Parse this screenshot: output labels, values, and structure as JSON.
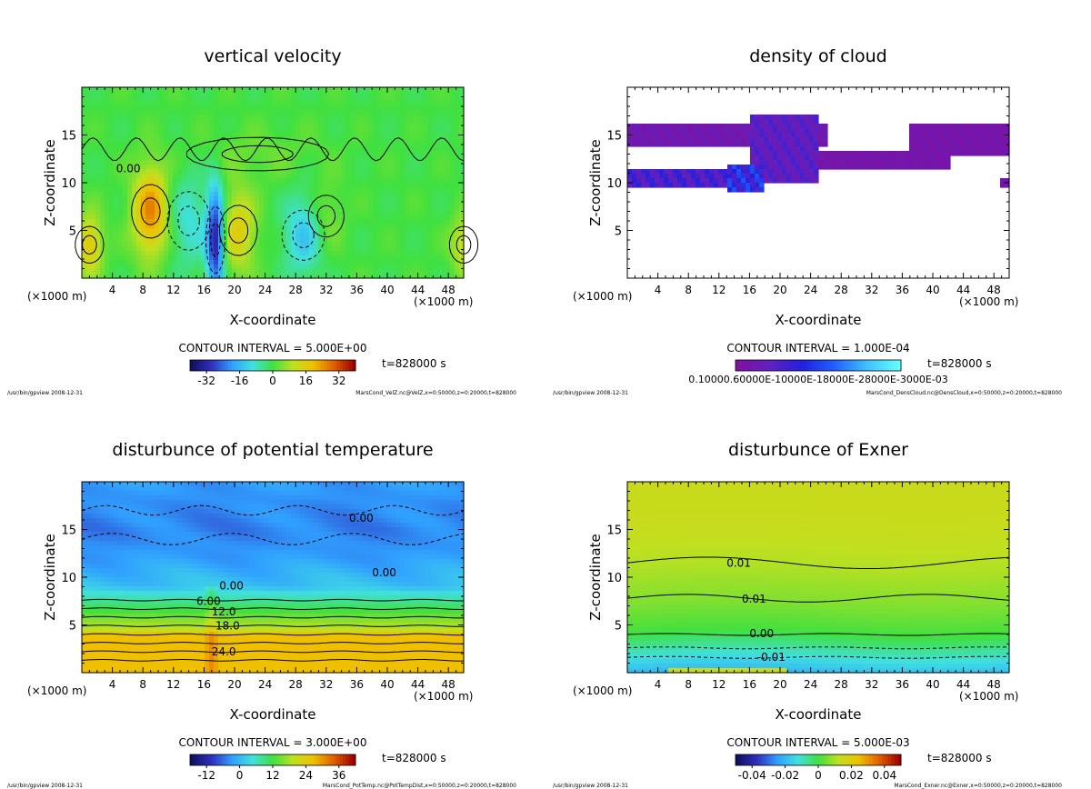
{
  "panels": [
    {
      "title": "vertical velocity",
      "xlabel": "X-coordinate",
      "ylabel": "Z-coordinate",
      "x_unit_left": "(×1000 m)",
      "x_unit_right": "(×1000 m)",
      "contour_interval": "CONTOUR INTERVAL = 5.000E+00",
      "time": "t=828000 s",
      "footer_left": "/usr/bin/gpview  2008-12-31",
      "footer_right": "MarsCond_VelZ.nc@VelZ,x=0:50000,z=0:20000,t=828000",
      "x_ticks": [
        "4",
        "8",
        "12",
        "16",
        "20",
        "24",
        "28",
        "32",
        "36",
        "40",
        "44",
        "48"
      ],
      "y_ticks": [
        "5",
        "10",
        "15"
      ],
      "colorbar_ticks": [
        "-32",
        "-16",
        "0",
        "16",
        "32"
      ],
      "contour_labels": [
        "0.00"
      ]
    },
    {
      "title": "density of cloud",
      "xlabel": "X-coordinate",
      "ylabel": "Z-coordinate",
      "x_unit_left": "(×1000 m)",
      "x_unit_right": "(×1000 m)",
      "contour_interval": "CONTOUR INTERVAL = 1.000E-04",
      "time": "t=828000 s",
      "footer_left": "/usr/bin/gpview  2008-12-31",
      "footer_right": "MarsCond_DensCloud.nc@DensCloud,x=0:50000,z=0:20000,t=828000",
      "x_ticks": [
        "4",
        "8",
        "12",
        "16",
        "20",
        "24",
        "28",
        "32",
        "36",
        "40",
        "44",
        "48"
      ],
      "y_ticks": [
        "5",
        "10",
        "15"
      ],
      "colorbar_ticks": [
        "0.1000E-03"
      ],
      "colorbar_tick_overlap": "0.10000.60000E-10000E-18000E-28000E-3000E-03",
      "contour_labels": []
    },
    {
      "title": "disturbunce of potential temperature",
      "xlabel": "X-coordinate",
      "ylabel": "Z-coordinate",
      "x_unit_left": "(×1000 m)",
      "x_unit_right": "(×1000 m)",
      "contour_interval": "CONTOUR INTERVAL = 3.000E+00",
      "time": "t=828000 s",
      "footer_left": "/usr/bin/gpview  2008-12-31",
      "footer_right": "MarsCond_PotTemp.nc@PotTempDist,x=0:50000,z=0:20000,t=828000",
      "x_ticks": [
        "4",
        "8",
        "12",
        "16",
        "20",
        "24",
        "28",
        "32",
        "36",
        "40",
        "44",
        "48"
      ],
      "y_ticks": [
        "5",
        "10",
        "15"
      ],
      "colorbar_ticks": [
        "-12",
        "0",
        "12",
        "24",
        "36"
      ],
      "contour_labels": [
        "0.00",
        "0.00",
        "0.00",
        "6.00",
        "12.0",
        "18.0",
        "24.0"
      ]
    },
    {
      "title": "disturbunce of Exner",
      "xlabel": "X-coordinate",
      "ylabel": "Z-coordinate",
      "x_unit_left": "(×1000 m)",
      "x_unit_right": "(×1000 m)",
      "contour_interval": "CONTOUR INTERVAL = 5.000E-03",
      "time": "t=828000 s",
      "footer_left": "/usr/bin/gpview  2008-12-31",
      "footer_right": "MarsCond_Exner.nc@Exner,x=0:50000,z=0:20000,t=828000",
      "x_ticks": [
        "4",
        "8",
        "12",
        "16",
        "20",
        "24",
        "28",
        "32",
        "36",
        "40",
        "44",
        "48"
      ],
      "y_ticks": [
        "5",
        "10",
        "15"
      ],
      "colorbar_ticks": [
        "-0.04",
        "-0.02",
        "0",
        "0.02",
        "0.04"
      ],
      "contour_labels": [
        "0.01",
        "0.01",
        "0.00",
        "-0.01"
      ]
    }
  ],
  "chart_data": [
    {
      "type": "heatmap",
      "title": "vertical velocity",
      "xlabel": "X-coordinate",
      "ylabel": "Z-coordinate",
      "xlim": [
        0,
        50
      ],
      "ylim": [
        0,
        20
      ],
      "color_range": [
        -40,
        40
      ],
      "colors": [
        "#101060",
        "#3030c0",
        "#30a0ff",
        "#40e0e0",
        "#40e040",
        "#c0e020",
        "#f0c000",
        "#e06000",
        "#a00000"
      ],
      "background_value": 0,
      "features": [
        {
          "x": 9,
          "z": 7,
          "sx": 1.6,
          "sz": 3.2,
          "v": 26
        },
        {
          "x": 1,
          "z": 3.5,
          "sx": 1.2,
          "sz": 2.2,
          "v": 18
        },
        {
          "x": 50,
          "z": 3.5,
          "sx": 1.2,
          "sz": 2.2,
          "v": 12
        },
        {
          "x": 14,
          "z": 6,
          "sx": 1.8,
          "sz": 3.5,
          "v": -10
        },
        {
          "x": 17.5,
          "z": 4,
          "sx": 0.8,
          "sz": 4,
          "v": -34
        },
        {
          "x": 20.5,
          "z": 5,
          "sx": 1.6,
          "sz": 3,
          "v": 16
        },
        {
          "x": 29,
          "z": 4.5,
          "sx": 1.8,
          "sz": 3,
          "v": -14
        },
        {
          "x": 32,
          "z": 6.5,
          "sx": 1.5,
          "sz": 2.5,
          "v": 6
        },
        {
          "x": 23,
          "z": 13,
          "sx": 6,
          "sz": 2,
          "v": 3
        }
      ]
    },
    {
      "type": "heatmap",
      "title": "density of cloud",
      "xlabel": "X-coordinate",
      "ylabel": "Z-coordinate",
      "xlim": [
        0,
        50
      ],
      "ylim": [
        0,
        20
      ],
      "color_range": [
        0,
        0.0003
      ],
      "colors": [
        "#8010a0",
        "#6020c0",
        "#2020e0",
        "#2060ff",
        "#40c0ff",
        "#60ffff"
      ],
      "bands": [
        {
          "x0": 0,
          "x1": 26,
          "z0": 14,
          "z1": 16,
          "v": 3e-05
        },
        {
          "x0": 0,
          "x1": 13,
          "z0": 9.5,
          "z1": 11.5,
          "v": 8e-05
        },
        {
          "x0": 13,
          "x1": 18,
          "z0": 9,
          "z1": 12,
          "v": 0.00012
        },
        {
          "x0": 16,
          "x1": 25,
          "z0": 10,
          "z1": 17,
          "v": 6e-05
        },
        {
          "x0": 25,
          "x1": 42,
          "z0": 11.5,
          "z1": 13.5,
          "v": 2e-05
        },
        {
          "x0": 37,
          "x1": 50,
          "z0": 13,
          "z1": 16,
          "v": 2e-05
        },
        {
          "x0": 49,
          "x1": 50,
          "z0": 9.5,
          "z1": 10.5,
          "v": 2e-05
        }
      ]
    },
    {
      "type": "heatmap",
      "title": "disturbunce of potential temperature",
      "xlabel": "X-coordinate",
      "ylabel": "Z-coordinate",
      "xlim": [
        0,
        50
      ],
      "ylim": [
        0,
        20
      ],
      "color_range": [
        -18,
        42
      ],
      "colors": [
        "#101060",
        "#3030c0",
        "#30a0ff",
        "#40e0e0",
        "#40e040",
        "#c0e020",
        "#f0c000",
        "#e06000",
        "#a00000"
      ],
      "profile": [
        {
          "z": 0,
          "v": 27
        },
        {
          "z": 4,
          "v": 27
        },
        {
          "z": 4.2,
          "v": 21
        },
        {
          "z": 5,
          "v": 18
        },
        {
          "z": 6.5,
          "v": 12
        },
        {
          "z": 8,
          "v": 6
        },
        {
          "z": 9,
          "v": 1
        },
        {
          "z": 12,
          "v": -3
        },
        {
          "z": 15,
          "v": -5
        },
        {
          "z": 18,
          "v": -4
        },
        {
          "z": 20,
          "v": -3
        }
      ]
    },
    {
      "type": "heatmap",
      "title": "disturbunce of Exner",
      "xlabel": "X-coordinate",
      "ylabel": "Z-coordinate",
      "xlim": [
        0,
        50
      ],
      "ylim": [
        0,
        20
      ],
      "color_range": [
        -0.05,
        0.05
      ],
      "colors": [
        "#101060",
        "#3030c0",
        "#30a0ff",
        "#40e0e0",
        "#40e040",
        "#c0e020",
        "#f0c000",
        "#e06000",
        "#a00000"
      ],
      "profile": [
        {
          "z": 0,
          "v": -0.02
        },
        {
          "z": 1,
          "v": -0.015
        },
        {
          "z": 2,
          "v": -0.01
        },
        {
          "z": 4,
          "v": 0.0
        },
        {
          "z": 7,
          "v": 0.006
        },
        {
          "z": 11,
          "v": 0.011
        },
        {
          "z": 15,
          "v": 0.014
        },
        {
          "z": 20,
          "v": 0.015
        }
      ]
    }
  ]
}
